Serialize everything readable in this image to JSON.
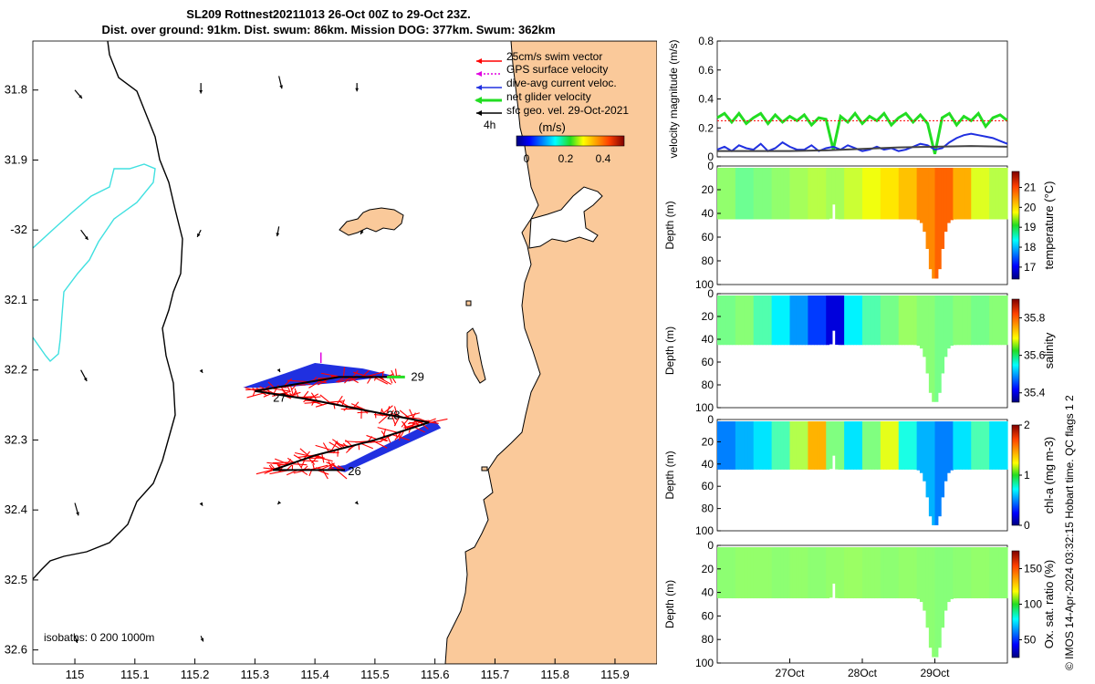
{
  "title_line1": "SL209 Rottnest20211013 26-Oct 00Z to 29-Oct 23Z.",
  "title_line2": "Dist. over ground: 91km. Dist. swum: 86km. Mission DOG: 377km. Swum: 362km",
  "credit": "© IMOS 14-Apr-2024 03:32:15 Hobart time. QC flags 1  2",
  "colors": {
    "land": "#FAC99A",
    "swim": "#FF0000",
    "gps": "#E000E0",
    "dive_avg": "#2030E0",
    "net": "#22DD22",
    "geo": "#000000",
    "isobath200": "#40E0E0"
  },
  "chart_data": [
    {
      "type": "map",
      "xlim": [
        114.93,
        115.97
      ],
      "ylim": [
        -32.62,
        -31.73
      ],
      "xticks": [
        115,
        115.1,
        115.2,
        115.3,
        115.4,
        115.5,
        115.6,
        115.7,
        115.8,
        115.9
      ],
      "xtick_labels": [
        "115",
        "115.1",
        "115.2",
        "115.3",
        "115.4",
        "115.5",
        "115.6",
        "115.7",
        "115.8",
        "115.9"
      ],
      "yticks": [
        -31.8,
        -31.9,
        -32.0,
        -32.1,
        -32.2,
        -32.3,
        -32.4,
        -32.5,
        -32.6
      ],
      "ytick_labels": [
        "31.8",
        "31.9",
        "-32",
        "32.1",
        "32.2",
        "32.3",
        "32.4",
        "32.5",
        "32.6"
      ],
      "legend": [
        "25cm/s swim vector",
        "GPS surface velocity",
        "dive-avg current veloc.",
        "net glider velocity",
        "sfc geo. vel. 29-Oct-2021"
      ],
      "legend_scale_label": "4h",
      "colorbar_title": "(m/s)",
      "colorbar_ticks": [
        "0",
        "0.2",
        "0.4"
      ],
      "isobath_label": "isobaths: 0   200  1000m",
      "track_day_labels": [
        "26",
        "27",
        "28",
        "29"
      ],
      "track": [
        [
          115.45,
          -32.343
        ],
        [
          115.33,
          -32.343
        ],
        [
          115.4,
          -32.322
        ],
        [
          115.5,
          -32.3
        ],
        [
          115.59,
          -32.275
        ],
        [
          115.51,
          -32.262
        ],
        [
          115.39,
          -32.242
        ],
        [
          115.3,
          -32.23
        ],
        [
          115.44,
          -32.21
        ],
        [
          115.54,
          -32.21
        ]
      ],
      "geo_vectors": [
        [
          115.0,
          -31.8,
          0.012,
          -0.012
        ],
        [
          115.21,
          -31.79,
          0.0,
          -0.015
        ],
        [
          115.34,
          -31.78,
          0.005,
          -0.018
        ],
        [
          115.47,
          -31.79,
          0.0,
          -0.012
        ],
        [
          115.01,
          -32.0,
          0.012,
          -0.014
        ],
        [
          115.21,
          -32.0,
          -0.006,
          -0.01
        ],
        [
          115.34,
          -31.995,
          -0.003,
          -0.014
        ],
        [
          115.48,
          -32.0,
          -0.004,
          -0.006
        ],
        [
          115.01,
          -32.2,
          0.01,
          -0.016
        ],
        [
          115.21,
          -32.2,
          0.003,
          -0.004
        ],
        [
          115.34,
          -32.2,
          0.002,
          -0.003
        ],
        [
          115.0,
          -32.39,
          0.006,
          -0.018
        ],
        [
          115.21,
          -32.39,
          0.003,
          -0.004
        ],
        [
          115.34,
          -32.39,
          -0.002,
          -0.002
        ],
        [
          115.47,
          -32.39,
          0.002,
          -0.002
        ],
        [
          115.0,
          -32.58,
          0.004,
          -0.01
        ],
        [
          115.21,
          -32.58,
          0.004,
          -0.008
        ]
      ]
    },
    {
      "type": "line",
      "ylabel": "velocity magnitude (m/s)",
      "xlim": [
        26.0,
        30.0
      ],
      "ylim": [
        0,
        0.8
      ],
      "yticks": [
        0,
        0.2,
        0.4,
        0.6,
        0.8
      ],
      "ytick_labels": [
        "0",
        "0.2",
        "0.4",
        "0.6",
        "0.8"
      ],
      "series": [
        {
          "name": "net glider velocity",
          "color": "#22DD22",
          "x": [
            26.0,
            26.1,
            26.2,
            26.3,
            26.4,
            26.5,
            26.6,
            26.7,
            26.8,
            26.9,
            27.0,
            27.1,
            27.2,
            27.3,
            27.4,
            27.5,
            27.6,
            27.7,
            27.8,
            27.9,
            28.0,
            28.1,
            28.2,
            28.3,
            28.4,
            28.5,
            28.6,
            28.7,
            28.8,
            28.9,
            29.0,
            29.1,
            29.2,
            29.3,
            29.4,
            29.5,
            29.6,
            29.7,
            29.8,
            29.9,
            30.0
          ],
          "y": [
            0.27,
            0.3,
            0.24,
            0.3,
            0.23,
            0.27,
            0.3,
            0.23,
            0.29,
            0.24,
            0.28,
            0.25,
            0.29,
            0.22,
            0.27,
            0.26,
            0.05,
            0.28,
            0.24,
            0.3,
            0.23,
            0.28,
            0.25,
            0.3,
            0.22,
            0.27,
            0.3,
            0.24,
            0.29,
            0.23,
            0.02,
            0.27,
            0.3,
            0.22,
            0.28,
            0.25,
            0.3,
            0.21,
            0.27,
            0.29,
            0.25
          ]
        },
        {
          "name": "dive-avg current veloc.",
          "color": "#2030E0",
          "x": [
            26.0,
            26.1,
            26.2,
            26.3,
            26.4,
            26.5,
            26.6,
            26.7,
            26.8,
            26.9,
            27.0,
            27.1,
            27.2,
            27.3,
            27.4,
            27.5,
            27.6,
            27.7,
            27.8,
            27.9,
            28.0,
            28.1,
            28.2,
            28.3,
            28.4,
            28.5,
            28.6,
            28.7,
            28.8,
            28.9,
            29.0,
            29.1,
            29.2,
            29.3,
            29.4,
            29.5,
            29.6,
            29.7,
            29.8,
            29.9,
            30.0
          ],
          "y": [
            0.05,
            0.07,
            0.04,
            0.08,
            0.06,
            0.05,
            0.09,
            0.04,
            0.06,
            0.1,
            0.07,
            0.05,
            0.05,
            0.08,
            0.04,
            0.06,
            0.07,
            0.05,
            0.08,
            0.06,
            0.04,
            0.05,
            0.07,
            0.05,
            0.06,
            0.04,
            0.05,
            0.07,
            0.09,
            0.08,
            0.05,
            0.06,
            0.1,
            0.13,
            0.15,
            0.16,
            0.15,
            0.14,
            0.13,
            0.11,
            0.09
          ]
        },
        {
          "name": "sfc geo. vel. 29-Oct-2021",
          "color": "#444444",
          "x": [
            26.0,
            26.5,
            27.0,
            27.5,
            28.0,
            28.5,
            29.0,
            29.5,
            30.0
          ],
          "y": [
            0.04,
            0.04,
            0.04,
            0.045,
            0.055,
            0.065,
            0.07,
            0.075,
            0.07
          ]
        },
        {
          "name": "swim speed",
          "color": "#FF0000",
          "x": [
            26.0,
            27.0,
            28.0,
            29.0,
            30.0
          ],
          "y": [
            0.25,
            0.25,
            0.25,
            0.25,
            0.25
          ]
        }
      ]
    },
    {
      "type": "heatmap",
      "ylabel": "Depth (m)",
      "cblabel": "temperature (°C)",
      "ylim": [
        0,
        100
      ],
      "yticks": [
        0,
        20,
        40,
        60,
        80,
        100
      ],
      "ytick_labels": [
        "0",
        "20",
        "40",
        "60",
        "80",
        "100"
      ],
      "clim": [
        16.4,
        21.8
      ],
      "cbticks": [
        17,
        18,
        19,
        20,
        21
      ],
      "cbtick_labels": [
        "17",
        "18",
        "19",
        "20",
        "21"
      ],
      "cells": [
        {
          "x": 26.0,
          "v": 19.2
        },
        {
          "x": 26.25,
          "v": 19.0
        },
        {
          "x": 26.5,
          "v": 19.1
        },
        {
          "x": 26.75,
          "v": 19.2
        },
        {
          "x": 27.0,
          "v": 19.3
        },
        {
          "x": 27.25,
          "v": 19.4
        },
        {
          "x": 27.5,
          "v": 19.3
        },
        {
          "x": 27.75,
          "v": 19.5
        },
        {
          "x": 28.0,
          "v": 19.7
        },
        {
          "x": 28.25,
          "v": 19.9
        },
        {
          "x": 28.5,
          "v": 20.1
        },
        {
          "x": 28.75,
          "v": 20.4
        },
        {
          "x": 29.0,
          "v": 20.6
        },
        {
          "x": 29.25,
          "v": 20.2
        },
        {
          "x": 29.5,
          "v": 19.6
        },
        {
          "x": 29.75,
          "v": 19.4
        }
      ]
    },
    {
      "type": "heatmap",
      "ylabel": "Depth (m)",
      "cblabel": "salinity",
      "ylim": [
        0,
        100
      ],
      "yticks": [
        0,
        20,
        40,
        60,
        80,
        100
      ],
      "ytick_labels": [
        "0",
        "20",
        "40",
        "60",
        "80",
        "100"
      ],
      "clim": [
        35.35,
        35.9
      ],
      "cbticks": [
        35.4,
        35.6,
        35.8
      ],
      "cbtick_labels": [
        "35.4",
        "35.6",
        "35.8"
      ],
      "cells": [
        {
          "x": 26.0,
          "v": 35.62
        },
        {
          "x": 26.25,
          "v": 35.63
        },
        {
          "x": 26.5,
          "v": 35.6
        },
        {
          "x": 26.75,
          "v": 35.55
        },
        {
          "x": 27.0,
          "v": 35.5
        },
        {
          "x": 27.25,
          "v": 35.45
        },
        {
          "x": 27.5,
          "v": 35.4
        },
        {
          "x": 27.75,
          "v": 35.55
        },
        {
          "x": 28.0,
          "v": 35.6
        },
        {
          "x": 28.25,
          "v": 35.62
        },
        {
          "x": 28.5,
          "v": 35.64
        },
        {
          "x": 28.75,
          "v": 35.63
        },
        {
          "x": 29.0,
          "v": 35.62
        },
        {
          "x": 29.25,
          "v": 35.63
        },
        {
          "x": 29.5,
          "v": 35.62
        },
        {
          "x": 29.75,
          "v": 35.63
        }
      ]
    },
    {
      "type": "heatmap",
      "ylabel": "Depth (m)",
      "cblabel": "chl-a (mg m-3)",
      "ylim": [
        0,
        100
      ],
      "yticks": [
        0,
        20,
        40,
        60,
        80,
        100
      ],
      "ytick_labels": [
        "0",
        "20",
        "40",
        "60",
        "80",
        "100"
      ],
      "clim": [
        0,
        2
      ],
      "cbticks": [
        0,
        1,
        2
      ],
      "cbtick_labels": [
        "0",
        "1",
        "2"
      ],
      "cells": [
        {
          "x": 26.0,
          "v": 0.5
        },
        {
          "x": 26.25,
          "v": 0.6
        },
        {
          "x": 26.5,
          "v": 0.7
        },
        {
          "x": 26.75,
          "v": 0.9
        },
        {
          "x": 27.0,
          "v": 1.1
        },
        {
          "x": 27.25,
          "v": 1.4
        },
        {
          "x": 27.5,
          "v": 1.0
        },
        {
          "x": 27.75,
          "v": 0.7
        },
        {
          "x": 28.0,
          "v": 1.0
        },
        {
          "x": 28.25,
          "v": 1.2
        },
        {
          "x": 28.5,
          "v": 0.8
        },
        {
          "x": 28.75,
          "v": 0.6
        },
        {
          "x": 29.0,
          "v": 0.5
        },
        {
          "x": 29.25,
          "v": 0.7
        },
        {
          "x": 29.5,
          "v": 0.9
        },
        {
          "x": 29.75,
          "v": 0.7
        }
      ]
    },
    {
      "type": "heatmap",
      "ylabel": "Depth (m)",
      "cblabel": "Ox. sat. ratio (%)",
      "ylim": [
        0,
        100
      ],
      "yticks": [
        0,
        20,
        40,
        60,
        80,
        100
      ],
      "ytick_labels": [
        "0",
        "20",
        "40",
        "60",
        "80",
        "100"
      ],
      "clim": [
        25,
        175
      ],
      "cbticks": [
        50,
        100,
        150
      ],
      "cbtick_labels": [
        "50",
        "100",
        "150"
      ],
      "xticks": [
        27,
        28,
        29
      ],
      "xtick_labels": [
        "27Oct",
        "28Oct",
        "29Oct"
      ],
      "cells": [
        {
          "x": 26.0,
          "v": 102
        },
        {
          "x": 26.25,
          "v": 103
        },
        {
          "x": 26.5,
          "v": 103
        },
        {
          "x": 26.75,
          "v": 102
        },
        {
          "x": 27.0,
          "v": 103
        },
        {
          "x": 27.25,
          "v": 102
        },
        {
          "x": 27.5,
          "v": 103
        },
        {
          "x": 27.75,
          "v": 104
        },
        {
          "x": 28.0,
          "v": 103
        },
        {
          "x": 28.25,
          "v": 102
        },
        {
          "x": 28.5,
          "v": 103
        },
        {
          "x": 28.75,
          "v": 102
        },
        {
          "x": 29.0,
          "v": 101
        },
        {
          "x": 29.25,
          "v": 102
        },
        {
          "x": 29.5,
          "v": 103
        },
        {
          "x": 29.75,
          "v": 102
        }
      ]
    }
  ]
}
